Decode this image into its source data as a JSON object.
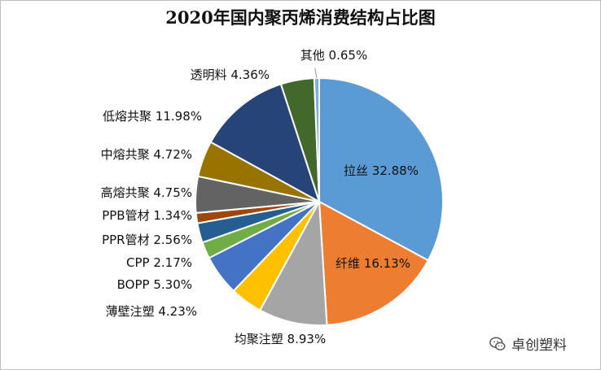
{
  "chart_data": {
    "type": "pie",
    "title": "2020年国内聚丙烯消费结构占比图",
    "slices": [
      {
        "label": "拉丝",
        "value": 32.88,
        "value_text": "32.88%",
        "color": "#5B9BD5"
      },
      {
        "label": "纤维",
        "value": 16.13,
        "value_text": "16.13%",
        "color": "#ED7D31"
      },
      {
        "label": "均聚注塑",
        "value": 8.93,
        "value_text": "8.93%",
        "color": "#A5A5A5"
      },
      {
        "label": "薄壁注塑",
        "value": 4.23,
        "value_text": "4.23%",
        "color": "#FFC000"
      },
      {
        "label": "BOPP",
        "value": 5.3,
        "value_text": "5.30%",
        "color": "#4472C4"
      },
      {
        "label": "CPP",
        "value": 2.17,
        "value_text": "2.17%",
        "color": "#70AD47"
      },
      {
        "label": "PPR管材",
        "value": 2.56,
        "value_text": "2.56%",
        "color": "#255E91"
      },
      {
        "label": "PPB管材",
        "value": 1.34,
        "value_text": "1.34%",
        "color": "#9E480E"
      },
      {
        "label": "高熔共聚",
        "value": 4.75,
        "value_text": "4.75%",
        "color": "#636363"
      },
      {
        "label": "中熔共聚",
        "value": 4.72,
        "value_text": "4.72%",
        "color": "#997300"
      },
      {
        "label": "低熔共聚",
        "value": 11.98,
        "value_text": "11.98%",
        "color": "#264478"
      },
      {
        "label": "透明料",
        "value": 4.36,
        "value_text": "4.36%",
        "color": "#43682B"
      },
      {
        "label": "其他",
        "value": 0.65,
        "value_text": "0.65%",
        "color": "#7CAFDD"
      }
    ]
  },
  "watermark": {
    "text": "卓创塑料",
    "icon": "wechat-icon"
  }
}
